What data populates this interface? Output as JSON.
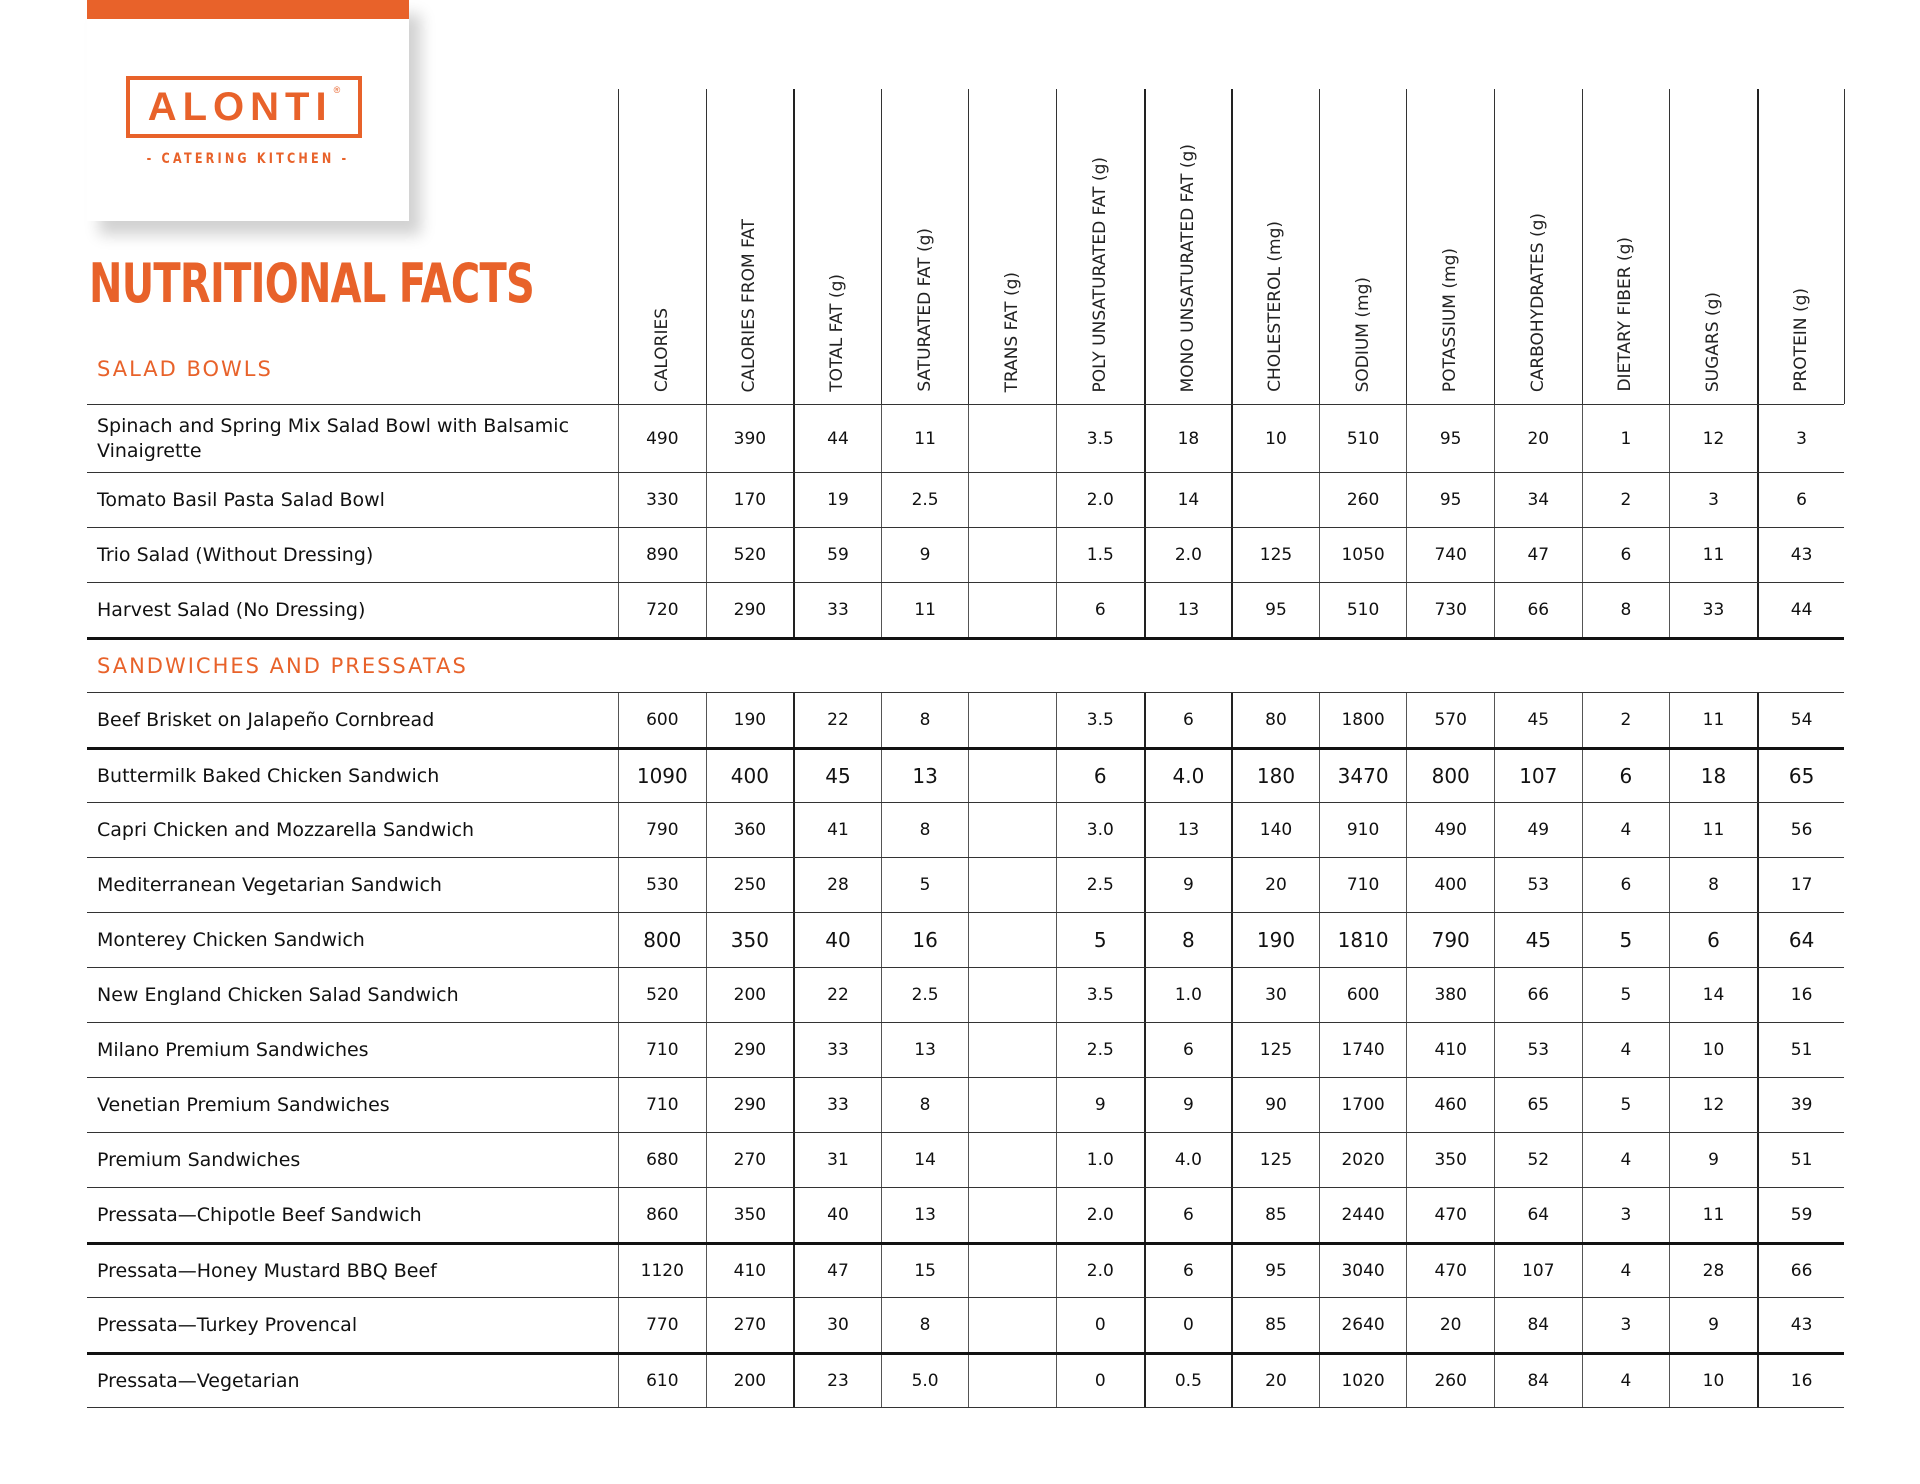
{
  "brand": {
    "logo_text": "ALONTI",
    "logo_registered": "®",
    "logo_subtitle": "- CATERING KITCHEN -",
    "accent_color": "#e8622a"
  },
  "title": "NUTRITIONAL FACTS",
  "columns": [
    "CALORIES",
    "CALORIES FROM FAT",
    "TOTAL FAT (g)",
    "SATURATED FAT (g)",
    "TRANS FAT (g)",
    "POLY UNSATURATED FAT (g)",
    "MONO UNSATURATED FAT (g)",
    "CHOLESTEROL (mg)",
    "SODIUM (mg)",
    "POTASSIUM (mg)",
    "CARBOHYDRATES (g)",
    "DIETARY FIBER (g)",
    "SUGARS (g)",
    "PROTEIN (g)"
  ],
  "sections": [
    {
      "label": "SALAD BOWLS",
      "rows": [
        {
          "name": "Spinach and Spring Mix Salad Bowl with Balsamic Vinaigrette",
          "values": [
            "490",
            "390",
            "44",
            "11",
            "",
            "3.5",
            "18",
            "10",
            "510",
            "95",
            "20",
            "1",
            "12",
            "3"
          ]
        },
        {
          "name": "Tomato Basil Pasta Salad Bowl",
          "values": [
            "330",
            "170",
            "19",
            "2.5",
            "",
            "2.0",
            "14",
            "",
            "260",
            "95",
            "34",
            "2",
            "3",
            "6"
          ]
        },
        {
          "name": "Trio Salad (Without Dressing)",
          "values": [
            "890",
            "520",
            "59",
            "9",
            "",
            "1.5",
            "2.0",
            "125",
            "1050",
            "740",
            "47",
            "6",
            "11",
            "43"
          ]
        },
        {
          "name": "Harvest Salad (No Dressing)",
          "values": [
            "720",
            "290",
            "33",
            "11",
            "",
            "6",
            "13",
            "95",
            "510",
            "730",
            "66",
            "8",
            "33",
            "44"
          ]
        }
      ]
    },
    {
      "label": "SANDWICHES AND PRESSATAS",
      "rows": [
        {
          "name": "Beef Brisket on Jalapeño Cornbread",
          "values": [
            "600",
            "190",
            "22",
            "8",
            "",
            "3.5",
            "6",
            "80",
            "1800",
            "570",
            "45",
            "2",
            "11",
            "54"
          ]
        },
        {
          "name": "Buttermilk Baked Chicken Sandwich",
          "values": [
            "1090",
            "400",
            "45",
            "13",
            "",
            "6",
            "4.0",
            "180",
            "3470",
            "800",
            "107",
            "6",
            "18",
            "65"
          ]
        },
        {
          "name": "Capri Chicken and Mozzarella Sandwich",
          "values": [
            "790",
            "360",
            "41",
            "8",
            "",
            "3.0",
            "13",
            "140",
            "910",
            "490",
            "49",
            "4",
            "11",
            "56"
          ]
        },
        {
          "name": "Mediterranean Vegetarian Sandwich",
          "values": [
            "530",
            "250",
            "28",
            "5",
            "",
            "2.5",
            "9",
            "20",
            "710",
            "400",
            "53",
            "6",
            "8",
            "17"
          ]
        },
        {
          "name": "Monterey Chicken Sandwich",
          "values": [
            "800",
            "350",
            "40",
            "16",
            "",
            "5",
            "8",
            "190",
            "1810",
            "790",
            "45",
            "5",
            "6",
            "64"
          ]
        },
        {
          "name": "New England Chicken Salad Sandwich",
          "values": [
            "520",
            "200",
            "22",
            "2.5",
            "",
            "3.5",
            "1.0",
            "30",
            "600",
            "380",
            "66",
            "5",
            "14",
            "16"
          ]
        },
        {
          "name": "Milano Premium Sandwiches",
          "values": [
            "710",
            "290",
            "33",
            "13",
            "",
            "2.5",
            "6",
            "125",
            "1740",
            "410",
            "53",
            "4",
            "10",
            "51"
          ]
        },
        {
          "name": "Venetian Premium Sandwiches",
          "values": [
            "710",
            "290",
            "33",
            "8",
            "",
            "9",
            "9",
            "90",
            "1700",
            "460",
            "65",
            "5",
            "12",
            "39"
          ]
        },
        {
          "name": "Premium Sandwiches",
          "values": [
            "680",
            "270",
            "31",
            "14",
            "",
            "1.0",
            "4.0",
            "125",
            "2020",
            "350",
            "52",
            "4",
            "9",
            "51"
          ]
        },
        {
          "name": "Pressata—Chipotle Beef Sandwich",
          "values": [
            "860",
            "350",
            "40",
            "13",
            "",
            "2.0",
            "6",
            "85",
            "2440",
            "470",
            "64",
            "3",
            "11",
            "59"
          ]
        },
        {
          "name": "Pressata—Honey Mustard BBQ Beef",
          "values": [
            "1120",
            "410",
            "47",
            "15",
            "",
            "2.0",
            "6",
            "95",
            "3040",
            "470",
            "107",
            "4",
            "28",
            "66"
          ]
        },
        {
          "name": "Pressata—Turkey Provencal",
          "values": [
            "770",
            "270",
            "30",
            "8",
            "",
            "0",
            "0",
            "85",
            "2640",
            "20",
            "84",
            "3",
            "9",
            "43"
          ]
        },
        {
          "name": "Pressata—Vegetarian",
          "values": [
            "610",
            "200",
            "23",
            "5.0",
            "",
            "0",
            "0.5",
            "20",
            "1020",
            "260",
            "84",
            "4",
            "10",
            "16"
          ]
        }
      ]
    }
  ]
}
